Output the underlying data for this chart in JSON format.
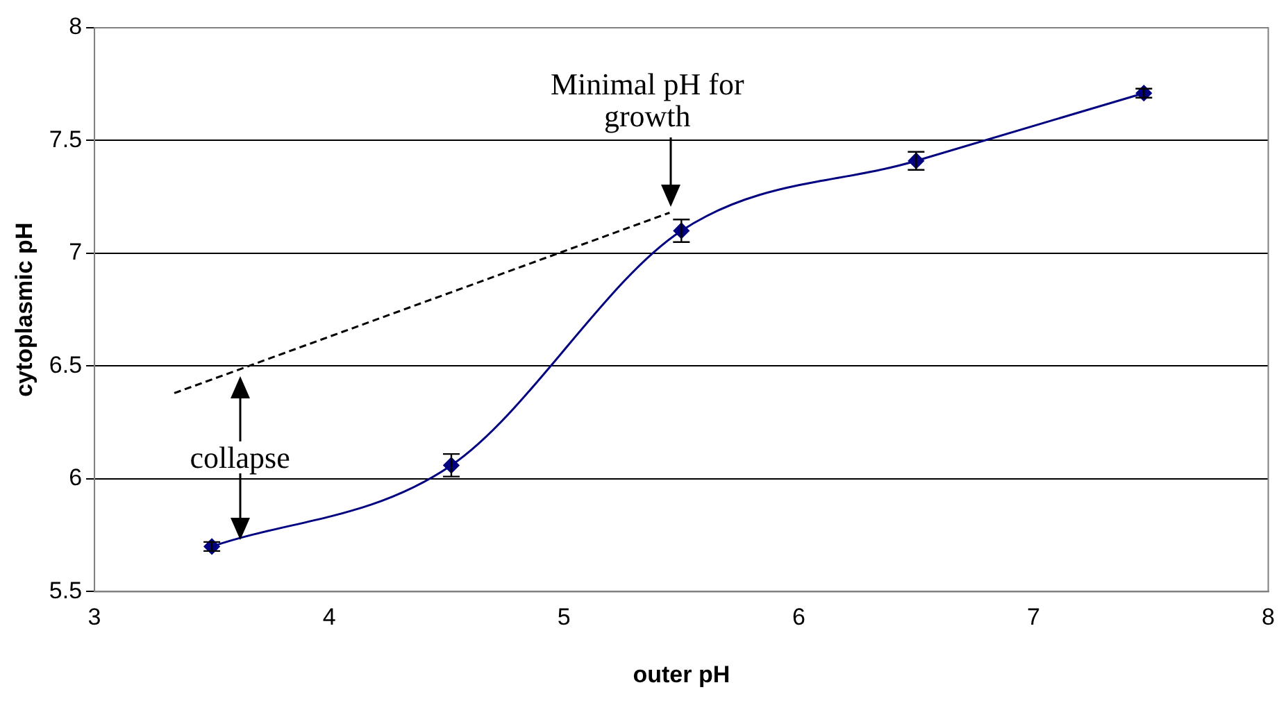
{
  "chart_data": {
    "type": "line",
    "xlabel": "outer pH",
    "ylabel": "cytoplasmic pH",
    "xlim": [
      3,
      8
    ],
    "xticks": [
      3,
      4,
      5,
      6,
      7,
      8
    ],
    "ylim": [
      5.5,
      8
    ],
    "yticks": [
      5.5,
      6,
      6.5,
      7,
      7.5,
      8
    ],
    "grid": "y",
    "legend": false,
    "series": [
      {
        "color": "#000080",
        "marker": "diamond",
        "x": [
          3.5,
          4.52,
          5.5,
          6.5,
          7.47
        ],
        "values": [
          5.7,
          6.06,
          7.1,
          7.41,
          7.71
        ],
        "errors": [
          0.02,
          0.05,
          0.05,
          0.04,
          0.02
        ]
      },
      {
        "color": "#000000",
        "marker": "none",
        "line_style": "dashed",
        "x": [
          3.34,
          5.45
        ],
        "values": [
          6.38,
          7.18
        ]
      }
    ],
    "annotations": [
      "Minimal pH for growth",
      "collapse"
    ]
  }
}
